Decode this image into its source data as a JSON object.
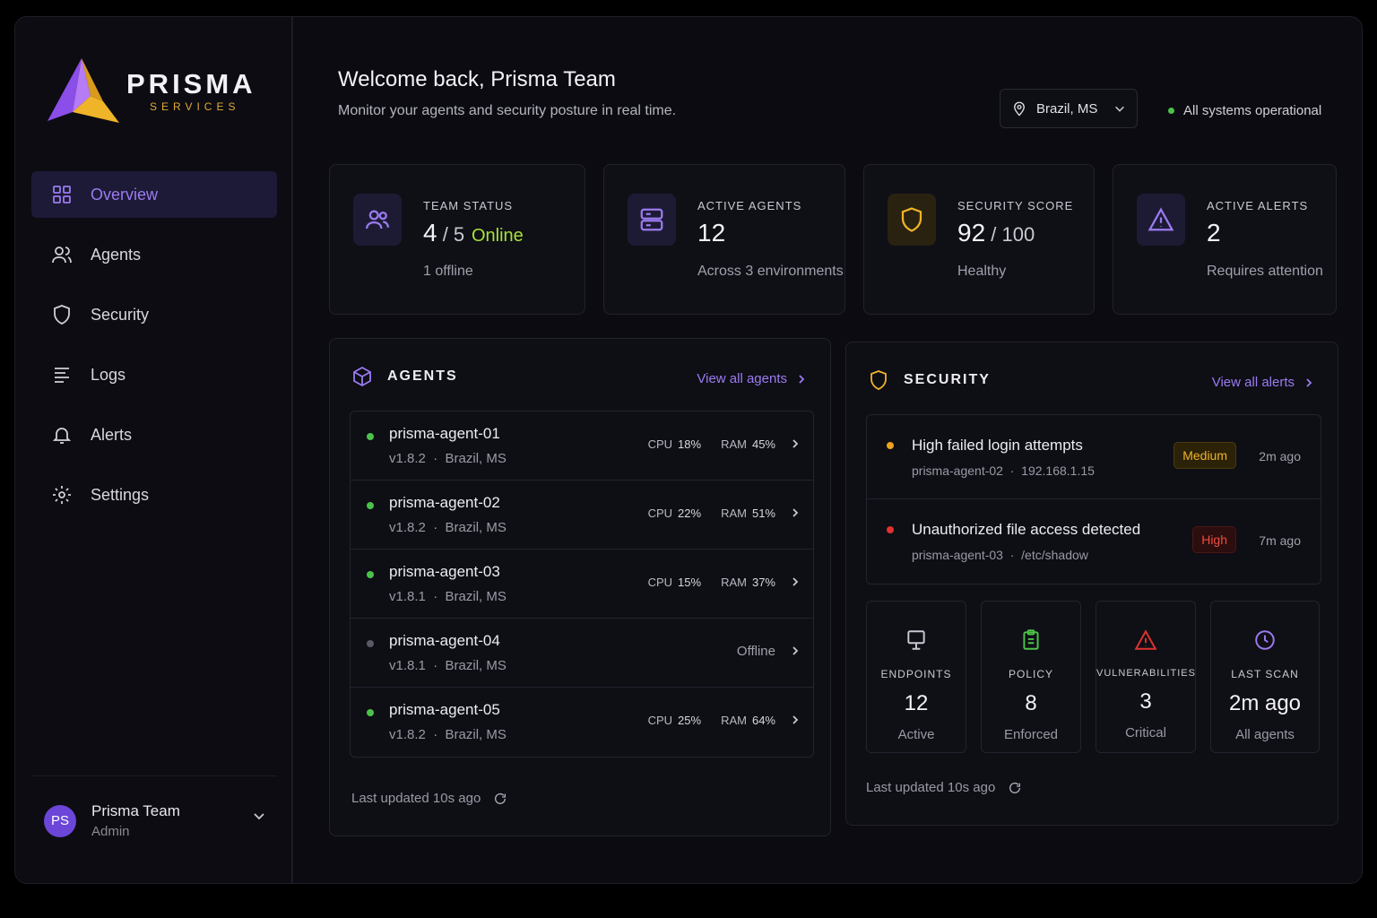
{
  "brand": {
    "name": "PRISMA",
    "tagline": "SERVICES"
  },
  "nav": [
    {
      "label": "Overview",
      "icon": "grid-icon",
      "active": true
    },
    {
      "label": "Agents",
      "icon": "users-icon"
    },
    {
      "label": "Security",
      "icon": "shield-icon"
    },
    {
      "label": "Logs",
      "icon": "list-icon"
    },
    {
      "label": "Alerts",
      "icon": "bell-icon"
    },
    {
      "label": "Settings",
      "icon": "gear-icon"
    }
  ],
  "user": {
    "initials": "PS",
    "name": "Prisma Team",
    "role": "Admin"
  },
  "header": {
    "title": "Welcome back, Prisma Team",
    "subtitle": "Monitor your agents and security posture in real time.",
    "location": "Brazil, MS",
    "system_status": "All systems operational"
  },
  "stats": {
    "team": {
      "label": "TEAM STATUS",
      "value": "4",
      "total": "5",
      "online_label": "Online",
      "sub": "1 offline"
    },
    "agents": {
      "label": "ACTIVE AGENTS",
      "value": "12",
      "sub": "Across 3 environments"
    },
    "security": {
      "label": "SECURITY SCORE",
      "value": "92",
      "total": "100",
      "sub": "Healthy"
    },
    "alerts": {
      "label": "ACTIVE ALERTS",
      "value": "2",
      "sub": "Requires attention"
    }
  },
  "agents_panel": {
    "title": "AGENTS",
    "link": "View all agents",
    "cpu_label": "CPU",
    "ram_label": "RAM",
    "rows": [
      {
        "name": "prisma-agent-01",
        "version": "v1.8.2",
        "location": "Brazil, MS",
        "status": "online",
        "cpu": "18%",
        "ram": "45%"
      },
      {
        "name": "prisma-agent-02",
        "version": "v1.8.2",
        "location": "Brazil, MS",
        "status": "online",
        "cpu": "22%",
        "ram": "51%"
      },
      {
        "name": "prisma-agent-03",
        "version": "v1.8.1",
        "location": "Brazil, MS",
        "status": "online",
        "cpu": "15%",
        "ram": "37%"
      },
      {
        "name": "prisma-agent-04",
        "version": "v1.8.1",
        "location": "Brazil, MS",
        "status": "offline",
        "offline_label": "Offline"
      },
      {
        "name": "prisma-agent-05",
        "version": "v1.8.2",
        "location": "Brazil, MS",
        "status": "online",
        "cpu": "25%",
        "ram": "64%"
      }
    ],
    "updated": "Last updated 10s ago"
  },
  "security_panel": {
    "title": "SECURITY",
    "link": "View all alerts",
    "alerts": [
      {
        "title": "High failed login attempts",
        "agent": "prisma-agent-02",
        "detail": "192.168.1.15",
        "severity": "Medium",
        "time": "2m ago"
      },
      {
        "title": "Unauthorized file access detected",
        "agent": "prisma-agent-03",
        "detail": "/etc/shadow",
        "severity": "High",
        "time": "7m ago"
      }
    ],
    "metrics": [
      {
        "label": "ENDPOINTS",
        "value": "12",
        "sub": "Active",
        "icon": "monitor-icon",
        "color": "#c9c9d3"
      },
      {
        "label": "POLICY",
        "value": "8",
        "sub": "Enforced",
        "icon": "clipboard-icon",
        "color": "#4cc24a"
      },
      {
        "label": "VULNERABILITIES",
        "value": "3",
        "sub": "Critical",
        "icon": "warning-icon",
        "color": "#e0322e"
      },
      {
        "label": "LAST SCAN",
        "value": "2m ago",
        "sub": "All agents",
        "icon": "clock-icon",
        "color": "#9b7bf0"
      }
    ],
    "updated": "Last updated 10s ago"
  },
  "colors": {
    "accent": "#9b7bf0",
    "online": "#4cc24a",
    "warning": "#f0b429",
    "danger": "#e0322e"
  }
}
